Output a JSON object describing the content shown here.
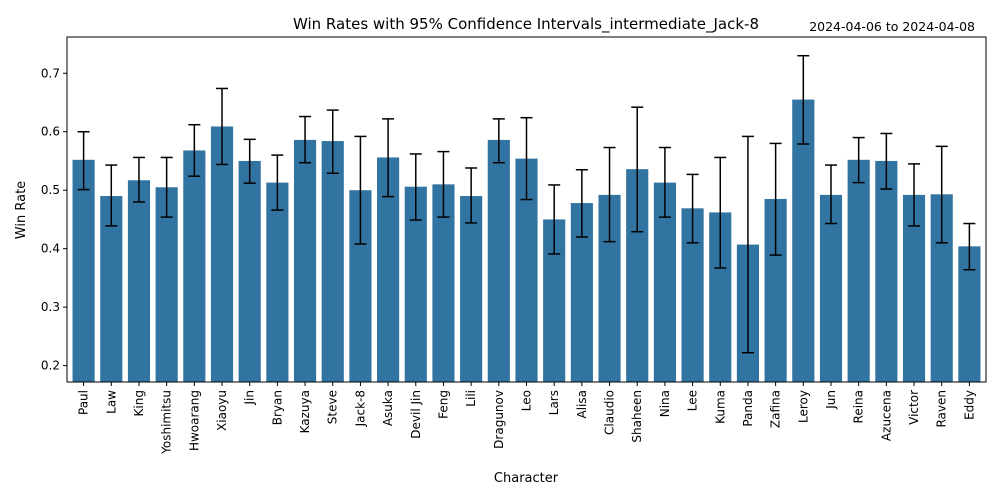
{
  "chart_data": {
    "type": "bar",
    "title": "Win Rates with 95% Confidence Intervals_intermediate_Jack-8",
    "subtitle": "2024-04-06 to 2024-04-08",
    "xlabel": "Character",
    "ylabel": "Win Rate",
    "ylim": [
      0.172,
      0.762
    ],
    "yticks": [
      0.2,
      0.3,
      0.4,
      0.5,
      0.6,
      0.7
    ],
    "ytick_labels": [
      "0.2",
      "0.3",
      "0.4",
      "0.5",
      "0.6",
      "0.7"
    ],
    "bar_color": "#3274a1",
    "grid": false,
    "categories": [
      "Paul",
      "Law",
      "King",
      "Yoshimitsu",
      "Hwoarang",
      "Xiaoyu",
      "Jin",
      "Bryan",
      "Kazuya",
      "Steve",
      "Jack-8",
      "Asuka",
      "Devil Jin",
      "Feng",
      "Lili",
      "Dragunov",
      "Leo",
      "Lars",
      "Alisa",
      "Claudio",
      "Shaheen",
      "Nina",
      "Lee",
      "Kuma",
      "Panda",
      "Zafina",
      "Leroy",
      "Jun",
      "Reina",
      "Azucena",
      "Victor",
      "Raven",
      "Eddy"
    ],
    "values": [
      0.552,
      0.49,
      0.517,
      0.505,
      0.568,
      0.609,
      0.55,
      0.513,
      0.586,
      0.584,
      0.5,
      0.556,
      0.506,
      0.51,
      0.49,
      0.586,
      0.554,
      0.45,
      0.478,
      0.492,
      0.536,
      0.513,
      0.469,
      0.462,
      0.407,
      0.485,
      0.655,
      0.492,
      0.552,
      0.55,
      0.492,
      0.493,
      0.404
    ],
    "ci_lower": [
      0.501,
      0.439,
      0.48,
      0.454,
      0.524,
      0.544,
      0.512,
      0.466,
      0.547,
      0.529,
      0.408,
      0.489,
      0.449,
      0.454,
      0.444,
      0.547,
      0.484,
      0.391,
      0.42,
      0.412,
      0.429,
      0.454,
      0.41,
      0.367,
      0.222,
      0.389,
      0.579,
      0.443,
      0.513,
      0.502,
      0.439,
      0.41,
      0.364
    ],
    "ci_upper": [
      0.6,
      0.543,
      0.556,
      0.556,
      0.612,
      0.674,
      0.587,
      0.56,
      0.626,
      0.637,
      0.592,
      0.622,
      0.562,
      0.566,
      0.538,
      0.622,
      0.624,
      0.509,
      0.535,
      0.573,
      0.642,
      0.573,
      0.527,
      0.556,
      0.592,
      0.58,
      0.73,
      0.543,
      0.59,
      0.597,
      0.545,
      0.575,
      0.443
    ]
  }
}
